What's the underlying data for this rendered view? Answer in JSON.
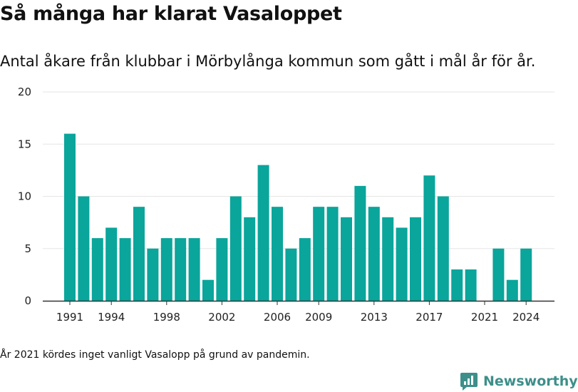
{
  "title": "Så många har klarat Vasaloppet",
  "subtitle": "Antal åkare från klubbar i Mörbylånga kommun som gått i mål år för år.",
  "footnote": "År 2021 kördes inget vanligt Vasalopp på grund av pandemin.",
  "brand": {
    "name": "Newsworthy",
    "icon": "newsworthy-logo-icon",
    "color": "#3d8f8a"
  },
  "colors": {
    "bar": "#0aa59b",
    "grid": "#e6e6e6",
    "axis": "#333333"
  },
  "chart_data": {
    "type": "bar",
    "x": [
      1991,
      1992,
      1993,
      1994,
      1995,
      1996,
      1997,
      1998,
      1999,
      2000,
      2001,
      2002,
      2003,
      2004,
      2005,
      2006,
      2007,
      2008,
      2009,
      2010,
      2011,
      2012,
      2013,
      2014,
      2015,
      2016,
      2017,
      2018,
      2019,
      2020,
      2021,
      2022,
      2023,
      2024
    ],
    "values": [
      16,
      10,
      6,
      7,
      6,
      9,
      5,
      6,
      6,
      6,
      2,
      6,
      10,
      8,
      13,
      9,
      5,
      6,
      9,
      9,
      8,
      11,
      9,
      8,
      7,
      8,
      12,
      10,
      3,
      3,
      0,
      5,
      2,
      5
    ],
    "xticks": [
      1991,
      1994,
      1998,
      2002,
      2006,
      2009,
      2013,
      2017,
      2021,
      2024
    ],
    "yticks": [
      0,
      5,
      10,
      15,
      20
    ],
    "ylim": [
      0,
      20
    ],
    "grid": true
  }
}
